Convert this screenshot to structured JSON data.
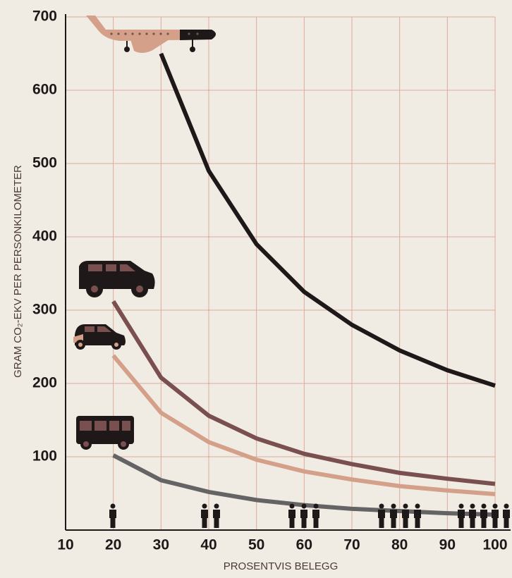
{
  "chart_data": {
    "type": "line",
    "x_label": "PROSENTVIS BELEGG",
    "y_label": "GRAM CO₂-EKV PER PERSONKILOMETER",
    "xlim": [
      10,
      100
    ],
    "xticks": [
      10,
      20,
      30,
      40,
      50,
      60,
      70,
      80,
      90,
      100
    ],
    "ylim": [
      0,
      700
    ],
    "yticks": [
      100,
      200,
      300,
      400,
      500,
      600,
      700
    ],
    "grid": true,
    "series": [
      {
        "color": "#1e1819",
        "x": [
          30,
          40,
          50,
          60,
          70,
          80,
          90,
          100
        ],
        "values": [
          650,
          490,
          390,
          325,
          280,
          245,
          218,
          197
        ]
      },
      {
        "color": "#7a4f50",
        "x": [
          20,
          30,
          40,
          50,
          60,
          70,
          80,
          90,
          100
        ],
        "values": [
          312,
          208,
          156,
          125,
          104,
          90,
          78,
          70,
          63
        ]
      },
      {
        "color": "#d4a08a",
        "x": [
          20,
          30,
          40,
          50,
          60,
          70,
          80,
          90,
          100
        ],
        "values": [
          238,
          160,
          120,
          96,
          80,
          69,
          60,
          54,
          49
        ]
      },
      {
        "color": "#646464",
        "x": [
          20,
          30,
          40,
          50,
          60,
          70,
          80,
          90,
          100
        ],
        "values": [
          102,
          68,
          52,
          41,
          34,
          29,
          26,
          23,
          21
        ]
      }
    ]
  }
}
